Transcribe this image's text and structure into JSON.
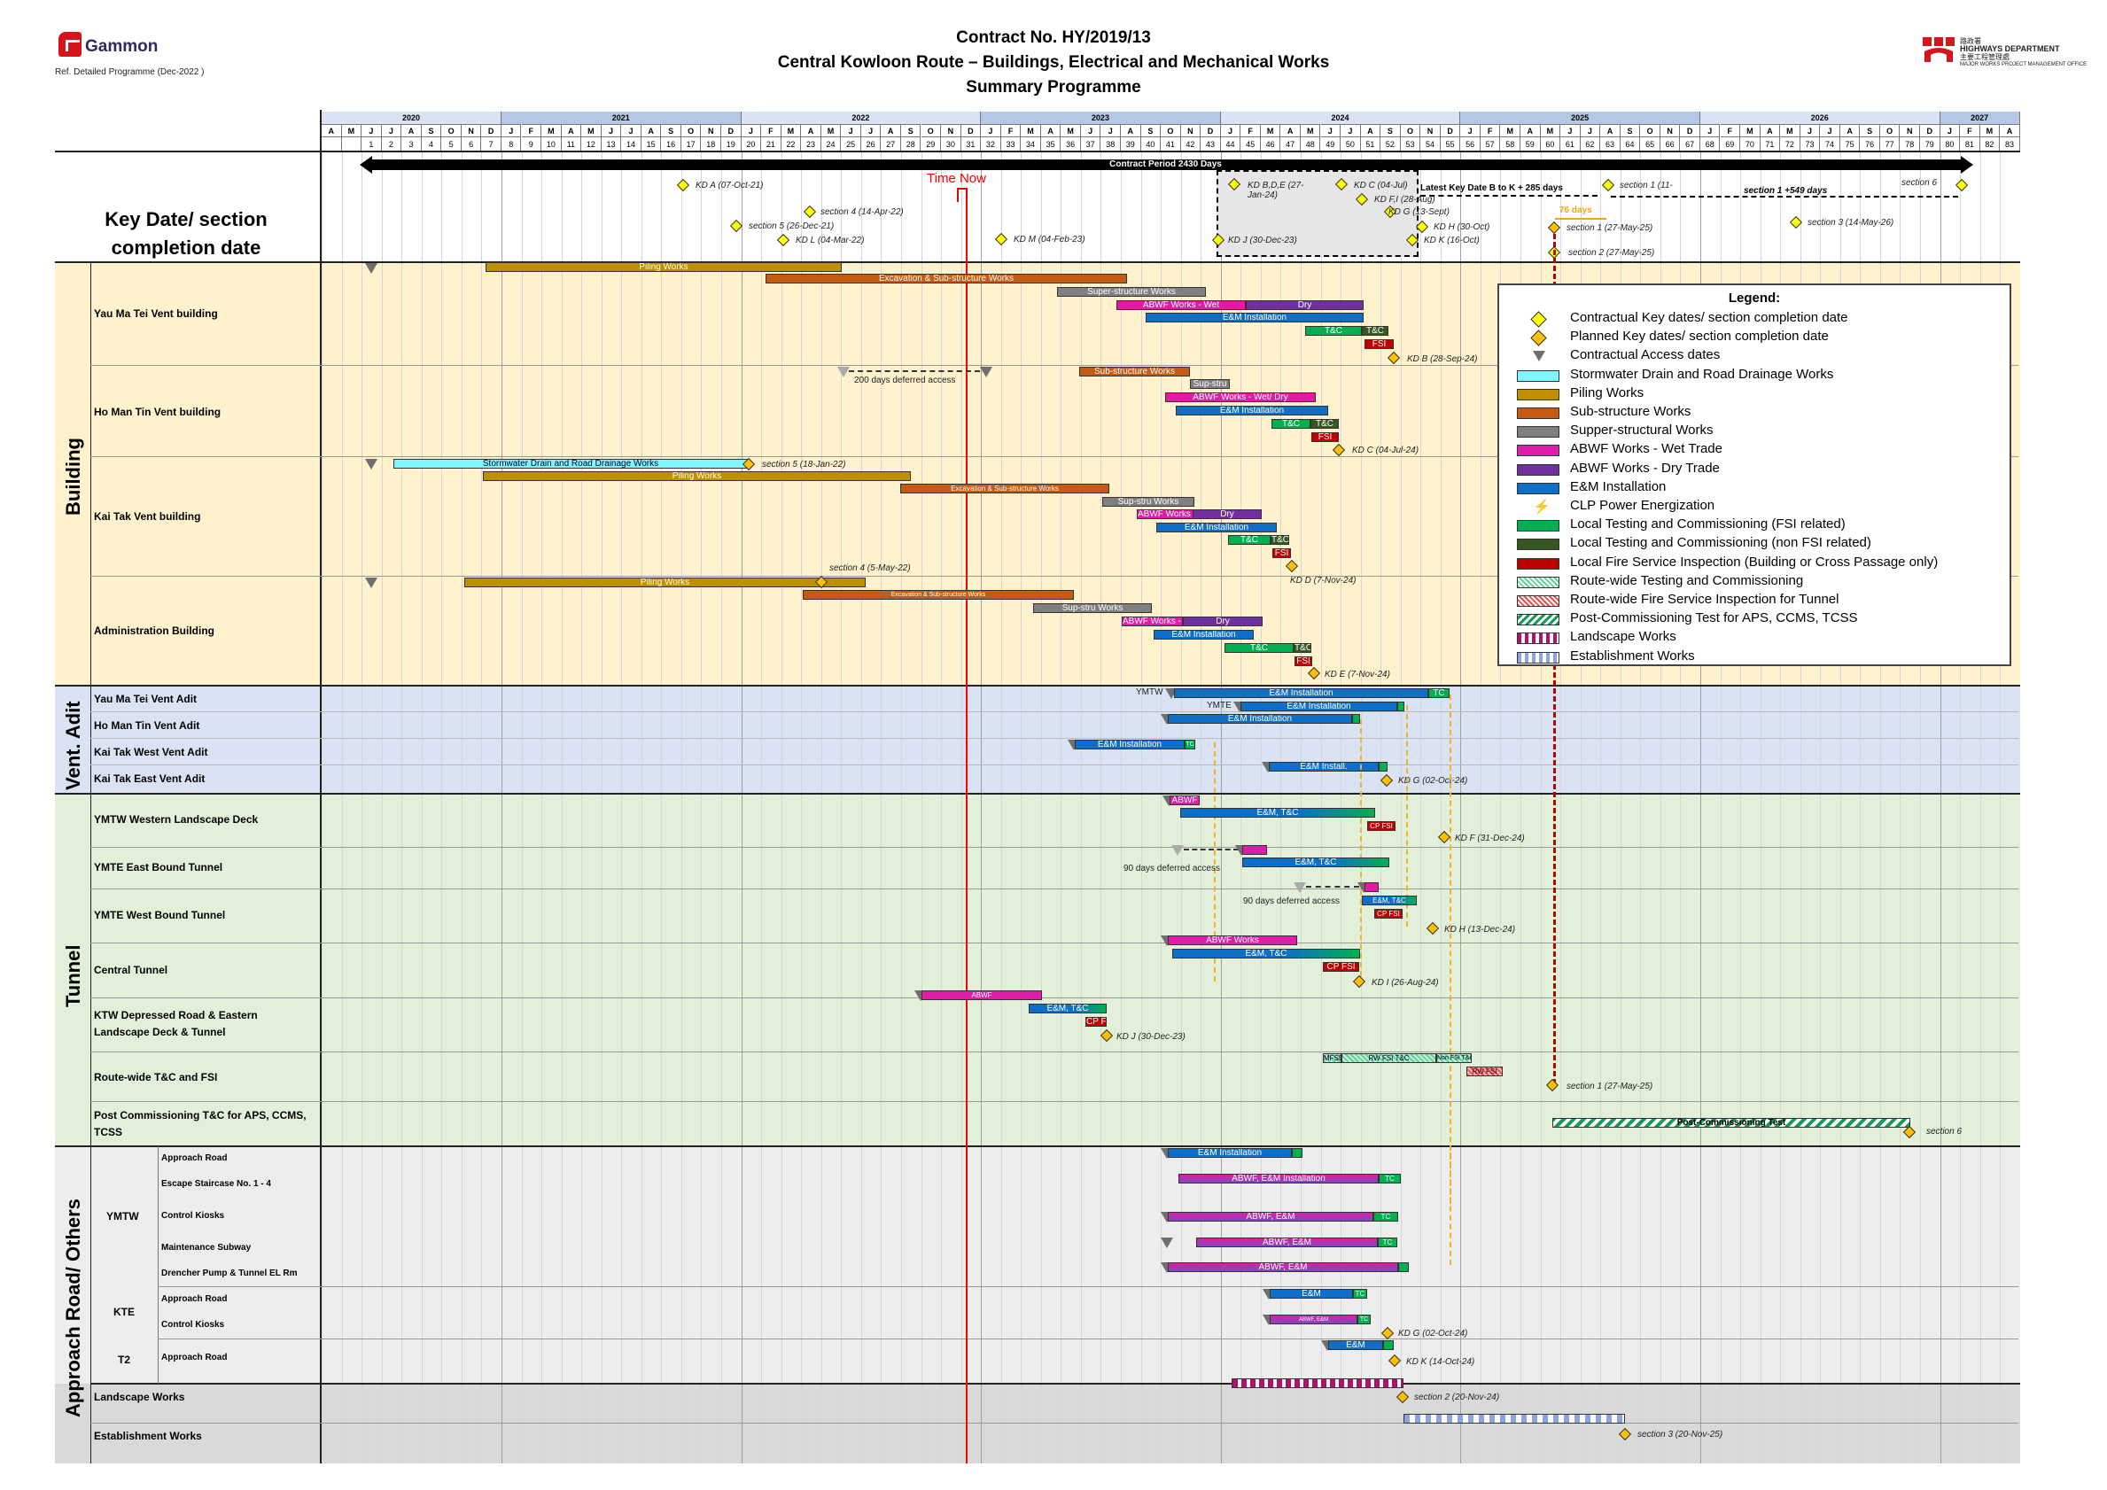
{
  "header": {
    "company": "Gammon",
    "reference": "Ref. Detailed Programme (Dec-2022 )",
    "title_line1": "Contract No. HY/2019/13",
    "title_line2": "Central Kowloon Route – Buildings, Electrical and Mechanical Works",
    "title_line3": "Summary Programme",
    "client_chinese": "路政署",
    "client": "HIGHWAYS DEPARTMENT",
    "client_sub_chinese": "主要工程管理處",
    "client_sub": "MAJOR WORKS PROJECT MANAGEMENT OFFICE"
  },
  "timeline": {
    "years": [
      {
        "label": "2020",
        "start": 0,
        "span": 9
      },
      {
        "label": "2021",
        "start": 9,
        "span": 12
      },
      {
        "label": "2022",
        "start": 21,
        "span": 12
      },
      {
        "label": "2023",
        "start": 33,
        "span": 12
      },
      {
        "label": "2024",
        "start": 45,
        "span": 12
      },
      {
        "label": "2025",
        "start": 57,
        "span": 12
      },
      {
        "label": "2026",
        "start": 69,
        "span": 12
      },
      {
        "label": "2027",
        "start": 81,
        "span": 4
      }
    ],
    "months": [
      "A",
      "M",
      "J",
      "J",
      "A",
      "S",
      "O",
      "N",
      "D",
      "J",
      "F",
      "M",
      "A",
      "M",
      "J",
      "J",
      "A",
      "S",
      "O",
      "N",
      "D",
      "J",
      "F",
      "M",
      "A",
      "M",
      "J",
      "J",
      "A",
      "S",
      "O",
      "N",
      "D",
      "J",
      "F",
      "M",
      "A",
      "M",
      "J",
      "J",
      "A",
      "S",
      "O",
      "N",
      "D",
      "J",
      "F",
      "M",
      "A",
      "M",
      "J",
      "J",
      "A",
      "S",
      "O",
      "N",
      "D",
      "J",
      "F",
      "M",
      "A",
      "M",
      "J",
      "J",
      "A",
      "S",
      "O",
      "N",
      "D",
      "J",
      "F",
      "M",
      "A",
      "M",
      "J",
      "J",
      "A",
      "S",
      "O",
      "N",
      "D",
      "J",
      "F",
      "M",
      "A"
    ],
    "month_numbers_start_column": 2,
    "month_numbers": [
      "1",
      "2",
      "3",
      "4",
      "5",
      "6",
      "7",
      "8",
      "9",
      "10",
      "11",
      "12",
      "13",
      "14",
      "15",
      "16",
      "17",
      "18",
      "19",
      "20",
      "21",
      "22",
      "23",
      "24",
      "25",
      "26",
      "27",
      "28",
      "29",
      "30",
      "31",
      "32",
      "33",
      "34",
      "35",
      "36",
      "37",
      "38",
      "39",
      "40",
      "41",
      "42",
      "43",
      "44",
      "45",
      "46",
      "47",
      "48",
      "49",
      "50",
      "51",
      "52",
      "53",
      "54",
      "55",
      "56",
      "57",
      "58",
      "59",
      "60",
      "61",
      "62",
      "63",
      "64",
      "65",
      "66",
      "67",
      "68",
      "69",
      "70",
      "71",
      "72",
      "73",
      "74",
      "75",
      "76",
      "77",
      "78",
      "79",
      "80",
      "81",
      "82",
      "83"
    ],
    "time_now_label": "Time Now",
    "contract_period_label": "Contract Period 2430 Days",
    "latest_kd_label": "Latest Key Date B to K + 285 days",
    "section1_extension_label": "section 1 +549 days",
    "delay_label": "76 days"
  },
  "key_date_row": {
    "label": "Key Date/ section completion date",
    "milestones": [
      {
        "label": "KD A (07-Oct-21)",
        "type": "contractual"
      },
      {
        "label": "section 4 (14-Apr-22)",
        "type": "contractual"
      },
      {
        "label": "section 5 (26-Dec-21)",
        "type": "contractual"
      },
      {
        "label": "KD L (04-Mar-22)",
        "type": "contractual"
      },
      {
        "label": "KD M (04-Feb-23)",
        "type": "contractual"
      },
      {
        "label": "KD B,D,E (27-Jan-24)",
        "type": "contractual"
      },
      {
        "label": "KD C (04-Jul)",
        "type": "contractual"
      },
      {
        "label": "KD F,I (28-Aug)",
        "type": "contractual"
      },
      {
        "label": "KD G (13-Sept)",
        "type": "contractual"
      },
      {
        "label": "KD H (30-Oct)",
        "type": "contractual"
      },
      {
        "label": "KD K (16-Oct)",
        "type": "contractual"
      },
      {
        "label": "KD J (30-Dec-23)",
        "type": "contractual"
      },
      {
        "label": "section 1 (11-",
        "type": "contractual"
      },
      {
        "label": "section 1 (27-May-25)",
        "type": "planned"
      },
      {
        "label": "section 2 (27-May-25)",
        "type": "contractual"
      },
      {
        "label": "section 3 (14-May-26)",
        "type": "contractual"
      },
      {
        "label": "section 6",
        "type": "contractual"
      }
    ]
  },
  "categories": {
    "building": "Building",
    "vent_adit": "Vent. Adit",
    "tunnel": "Tunnel",
    "approach": "Approach Road/ Others"
  },
  "rows": {
    "ymt_building": "Yau Ma Tei Vent building",
    "hmt_building": "Ho Man Tin Vent building",
    "kt_building": "Kai Tak Vent building",
    "admin_building": "Administration Building",
    "ymt_adit": "Yau Ma Tei Vent Adit",
    "hmt_adit": "Ho Man Tin Vent Adit",
    "ktw_adit": "Kai Tak West Vent Adit",
    "kte_adit": "Kai Tak East Vent Adit",
    "ymtw_deck": "YMTW Western Landscape Deck",
    "ymte_eb": "YMTE East Bound Tunnel",
    "ymte_wb": "YMTE West Bound Tunnel",
    "central": "Central Tunnel",
    "ktw_dep_1": "KTW Depressed Road & Eastern",
    "ktw_dep_2": "Landscape Deck & Tunnel",
    "routewide": "Route-wide T&C and FSI",
    "postcomm_1": "Post Commissioning T&C for APS, CCMS,",
    "postcomm_2": "TCSS",
    "grp_ymtw": "YMTW",
    "grp_kte": "KTE",
    "grp_t2": "T2",
    "ymtw_approach": "Approach Road",
    "ymtw_escape": "Escape Staircase No. 1 - 4",
    "ymtw_kiosks": "Control Kiosks",
    "ymtw_subway": "Maintenance Subway",
    "ymtw_drencher": "Drencher Pump & Tunnel EL Rm",
    "kte_approach": "Approach Road",
    "kte_kiosks": "Control Kiosks",
    "t2_approach": "Approach Road",
    "landscape": "Landscape Works",
    "establishment": "Establishment Works"
  },
  "bar_labels": {
    "piling": "Piling Works",
    "exc_sub": "Excavation & Sub-structure Works",
    "super": "Super-structure Works",
    "abwf_wet": "ABWF Works - Wet",
    "dry": "Dry",
    "em": "E&M Installation",
    "tc": "T&C",
    "fsi": "FSI",
    "sub": "Sub-structure Works",
    "supstru": "Sup-stru",
    "abwf_wetdry": "ABWF Works - Wet/ Dry",
    "storm": "Stormwater Drain and Road Drainage Works",
    "supstru_works": "Sup-stru Works",
    "ymtw": "YMTW",
    "ymte": "YMTE",
    "tc_short": "TC",
    "em_install_short": "E&M Install.",
    "abwf": "ABWF",
    "em_tc": "E&M, T&C",
    "cp_fsi": "CP FSI",
    "abwf_works": "ABWF Works",
    "mfsd": "MFSD",
    "rw_fsi_tc": "RW FSI T&C",
    "non_fsi_tc": "Non FSI T&C",
    "rw_fsi": "RW FSI",
    "post_test": "Post-Commissioning Test",
    "abwf_em_install": "ABWF, E&M Installation",
    "abwf_em": "ABWF, E&M",
    "em_short": "E&M",
    "deferred_200": "200 days deferred access",
    "deferred_90": "90 days deferred access"
  },
  "milestone_labels": {
    "kd_b": "KD B (28-Sep-24)",
    "kd_c": "KD C (04-Jul-24)",
    "sec5": "section 5 (18-Jan-22)",
    "sec4": "section 4 (5-May-22)",
    "kd_d": "KD D (7-Nov-24)",
    "kd_e": "KD E (7-Nov-24)",
    "kd_g": "KD G (02-Oct-24)",
    "kd_f": "KD F (31-Dec-24)",
    "kd_h": "KD H (13-Dec-24)",
    "kd_i": "KD I (26-Aug-24)",
    "kd_j": "KD J (30-Dec-23)",
    "sec1": "section 1 (27-May-25)",
    "sec6": "section 6",
    "kd_g2": "KD G (02-Oct-24)",
    "kd_k": "KD K (14-Oct-24)",
    "sec2": "section 2 (20-Nov-24)",
    "sec3": "section 3 (20-Nov-25)"
  },
  "legend": {
    "title": "Legend:",
    "items": [
      {
        "label": "Contractual Key dates/ section completion date",
        "symbol": "diamond",
        "color": "#ffff00"
      },
      {
        "label": "Planned Key dates/ section completion date",
        "symbol": "diamond",
        "color": "#ffc000"
      },
      {
        "label": "Contractual Access dates",
        "symbol": "triangle",
        "color": "#6f6f6f"
      },
      {
        "label": "Stormwater Drain and Road Drainage Works",
        "symbol": "bar",
        "color": "#7ff7ff"
      },
      {
        "label": "Piling Works",
        "symbol": "bar",
        "color": "#bf8f00"
      },
      {
        "label": "Sub-structure Works",
        "symbol": "bar",
        "color": "#c55a11"
      },
      {
        "label": "Supper-structural Works",
        "symbol": "bar",
        "color": "#7f7f7f"
      },
      {
        "label": "ABWF Works - Wet Trade",
        "symbol": "bar",
        "color": "#e11ba5"
      },
      {
        "label": "ABWF Works - Dry Trade",
        "symbol": "bar",
        "color": "#7030a0"
      },
      {
        "label": "E&M Installation",
        "symbol": "bar",
        "color": "#0f6fc6"
      },
      {
        "label": "CLP Power Energization",
        "symbol": "lightning",
        "color": "#ffff00"
      },
      {
        "label": "Local Testing and Commissioning (FSI related)",
        "symbol": "bar",
        "color": "#00b050"
      },
      {
        "label": "Local Testing and Commissioning (non FSI related)",
        "symbol": "bar",
        "color": "#375623"
      },
      {
        "label": "Local Fire Service Inspection (Building or Cross Passage only)",
        "symbol": "bar",
        "color": "#c00000"
      },
      {
        "label": "Route-wide Testing and Commissioning",
        "symbol": "hatch",
        "color": "#5fd39a"
      },
      {
        "label": "Route-wide Fire Service Inspection for Tunnel",
        "symbol": "hatch",
        "color": "#e85050"
      },
      {
        "label": "Post-Commissioning Test for APS, CCMS, TCSS",
        "symbol": "stripe",
        "color": "#1a9a5a"
      },
      {
        "label": "Landscape Works",
        "symbol": "check",
        "color": "#b0106e"
      },
      {
        "label": "Establishment Works",
        "symbol": "check",
        "color": "#8aa4e0"
      }
    ]
  },
  "colors": {
    "building_bg": "#fff2cc",
    "adit_bg": "#dae3f3",
    "tunnel_bg": "#e2efd9",
    "approach_bg": "#ededed",
    "others_bg": "#d9d9d9",
    "time_now": "#ff0000"
  },
  "chart_data": {
    "type": "gantt",
    "title": "Contract No. HY/2019/13 – Central Kowloon Route – Buildings, Electrical and Mechanical Works – Summary Programme",
    "x_axis": "Month (Apr-2020 to Apr-2027), contract months 1–83",
    "time_now": "Dec-2022 (month 31)",
    "contract_period_days": 2430,
    "tasks": [
      {
        "group": "Yau Ma Tei Vent building",
        "task": "Piling Works",
        "start": "Nov-2020",
        "end": "Dec-2021"
      },
      {
        "group": "Yau Ma Tei Vent building",
        "task": "Excavation & Sub-structure Works",
        "start": "Jan-2022",
        "end": "Sep-2023"
      },
      {
        "group": "Yau Ma Tei Vent building",
        "task": "Super-structure Works",
        "start": "Jul-2023",
        "end": "Nov-2023"
      },
      {
        "group": "Yau Ma Tei Vent building",
        "task": "ABWF Works - Wet",
        "start": "Oct-2023",
        "end": "Feb-2024"
      },
      {
        "group": "Yau Ma Tei Vent building",
        "task": "Dry",
        "start": "Feb-2024",
        "end": "Jul-2024"
      },
      {
        "group": "Yau Ma Tei Vent building",
        "task": "E&M Installation",
        "start": "Nov-2023",
        "end": "Jul-2024"
      },
      {
        "group": "Yau Ma Tei Vent building",
        "milestone": "KD B (28-Sep-24)"
      },
      {
        "group": "Ho Man Tin Vent building",
        "task": "200 days deferred access"
      },
      {
        "group": "Ho Man Tin Vent building",
        "task": "Sub-structure Works",
        "start": "Apr-2023",
        "end": "Aug-2023"
      },
      {
        "group": "Ho Man Tin Vent building",
        "task": "ABWF Works - Wet/ Dry",
        "start": "Dec-2023",
        "end": "May-2024"
      },
      {
        "group": "Ho Man Tin Vent building",
        "milestone": "KD C (04-Jul-24)"
      },
      {
        "group": "Kai Tak Vent building",
        "task": "Stormwater Drain and Road Drainage Works",
        "start": "Jul-2020",
        "end": "Jan-2022"
      },
      {
        "group": "Kai Tak Vent building",
        "milestone": "section 5 (18-Jan-22)"
      },
      {
        "group": "Kai Tak Vent building",
        "milestone": "KD D (7-Nov-24)"
      },
      {
        "group": "Administration Building",
        "milestone": "section 4 (5-May-22)"
      },
      {
        "group": "Administration Building",
        "milestone": "KD E (7-Nov-24)"
      },
      {
        "group": "Kai Tak East Vent Adit",
        "milestone": "KD G (02-Oct-24)"
      },
      {
        "group": "YMTW Western Landscape Deck",
        "milestone": "KD F (31-Dec-24)"
      },
      {
        "group": "YMTE West Bound Tunnel",
        "milestone": "KD H (13-Dec-24)"
      },
      {
        "group": "Central Tunnel",
        "milestone": "KD I (26-Aug-24)"
      },
      {
        "group": "KTW Depressed Road & Eastern Landscape Deck & Tunnel",
        "milestone": "KD J (30-Dec-23)"
      },
      {
        "group": "Route-wide T&C and FSI",
        "milestone": "section 1 (27-May-25)"
      },
      {
        "group": "Post Commissioning T&C",
        "task": "Post-Commissioning Test",
        "start": "Jun-2025",
        "end": "Jan-2027"
      },
      {
        "group": "Landscape Works",
        "milestone": "section 2 (20-Nov-24)"
      },
      {
        "group": "Establishment Works",
        "milestone": "section 3 (20-Nov-25)"
      }
    ]
  }
}
